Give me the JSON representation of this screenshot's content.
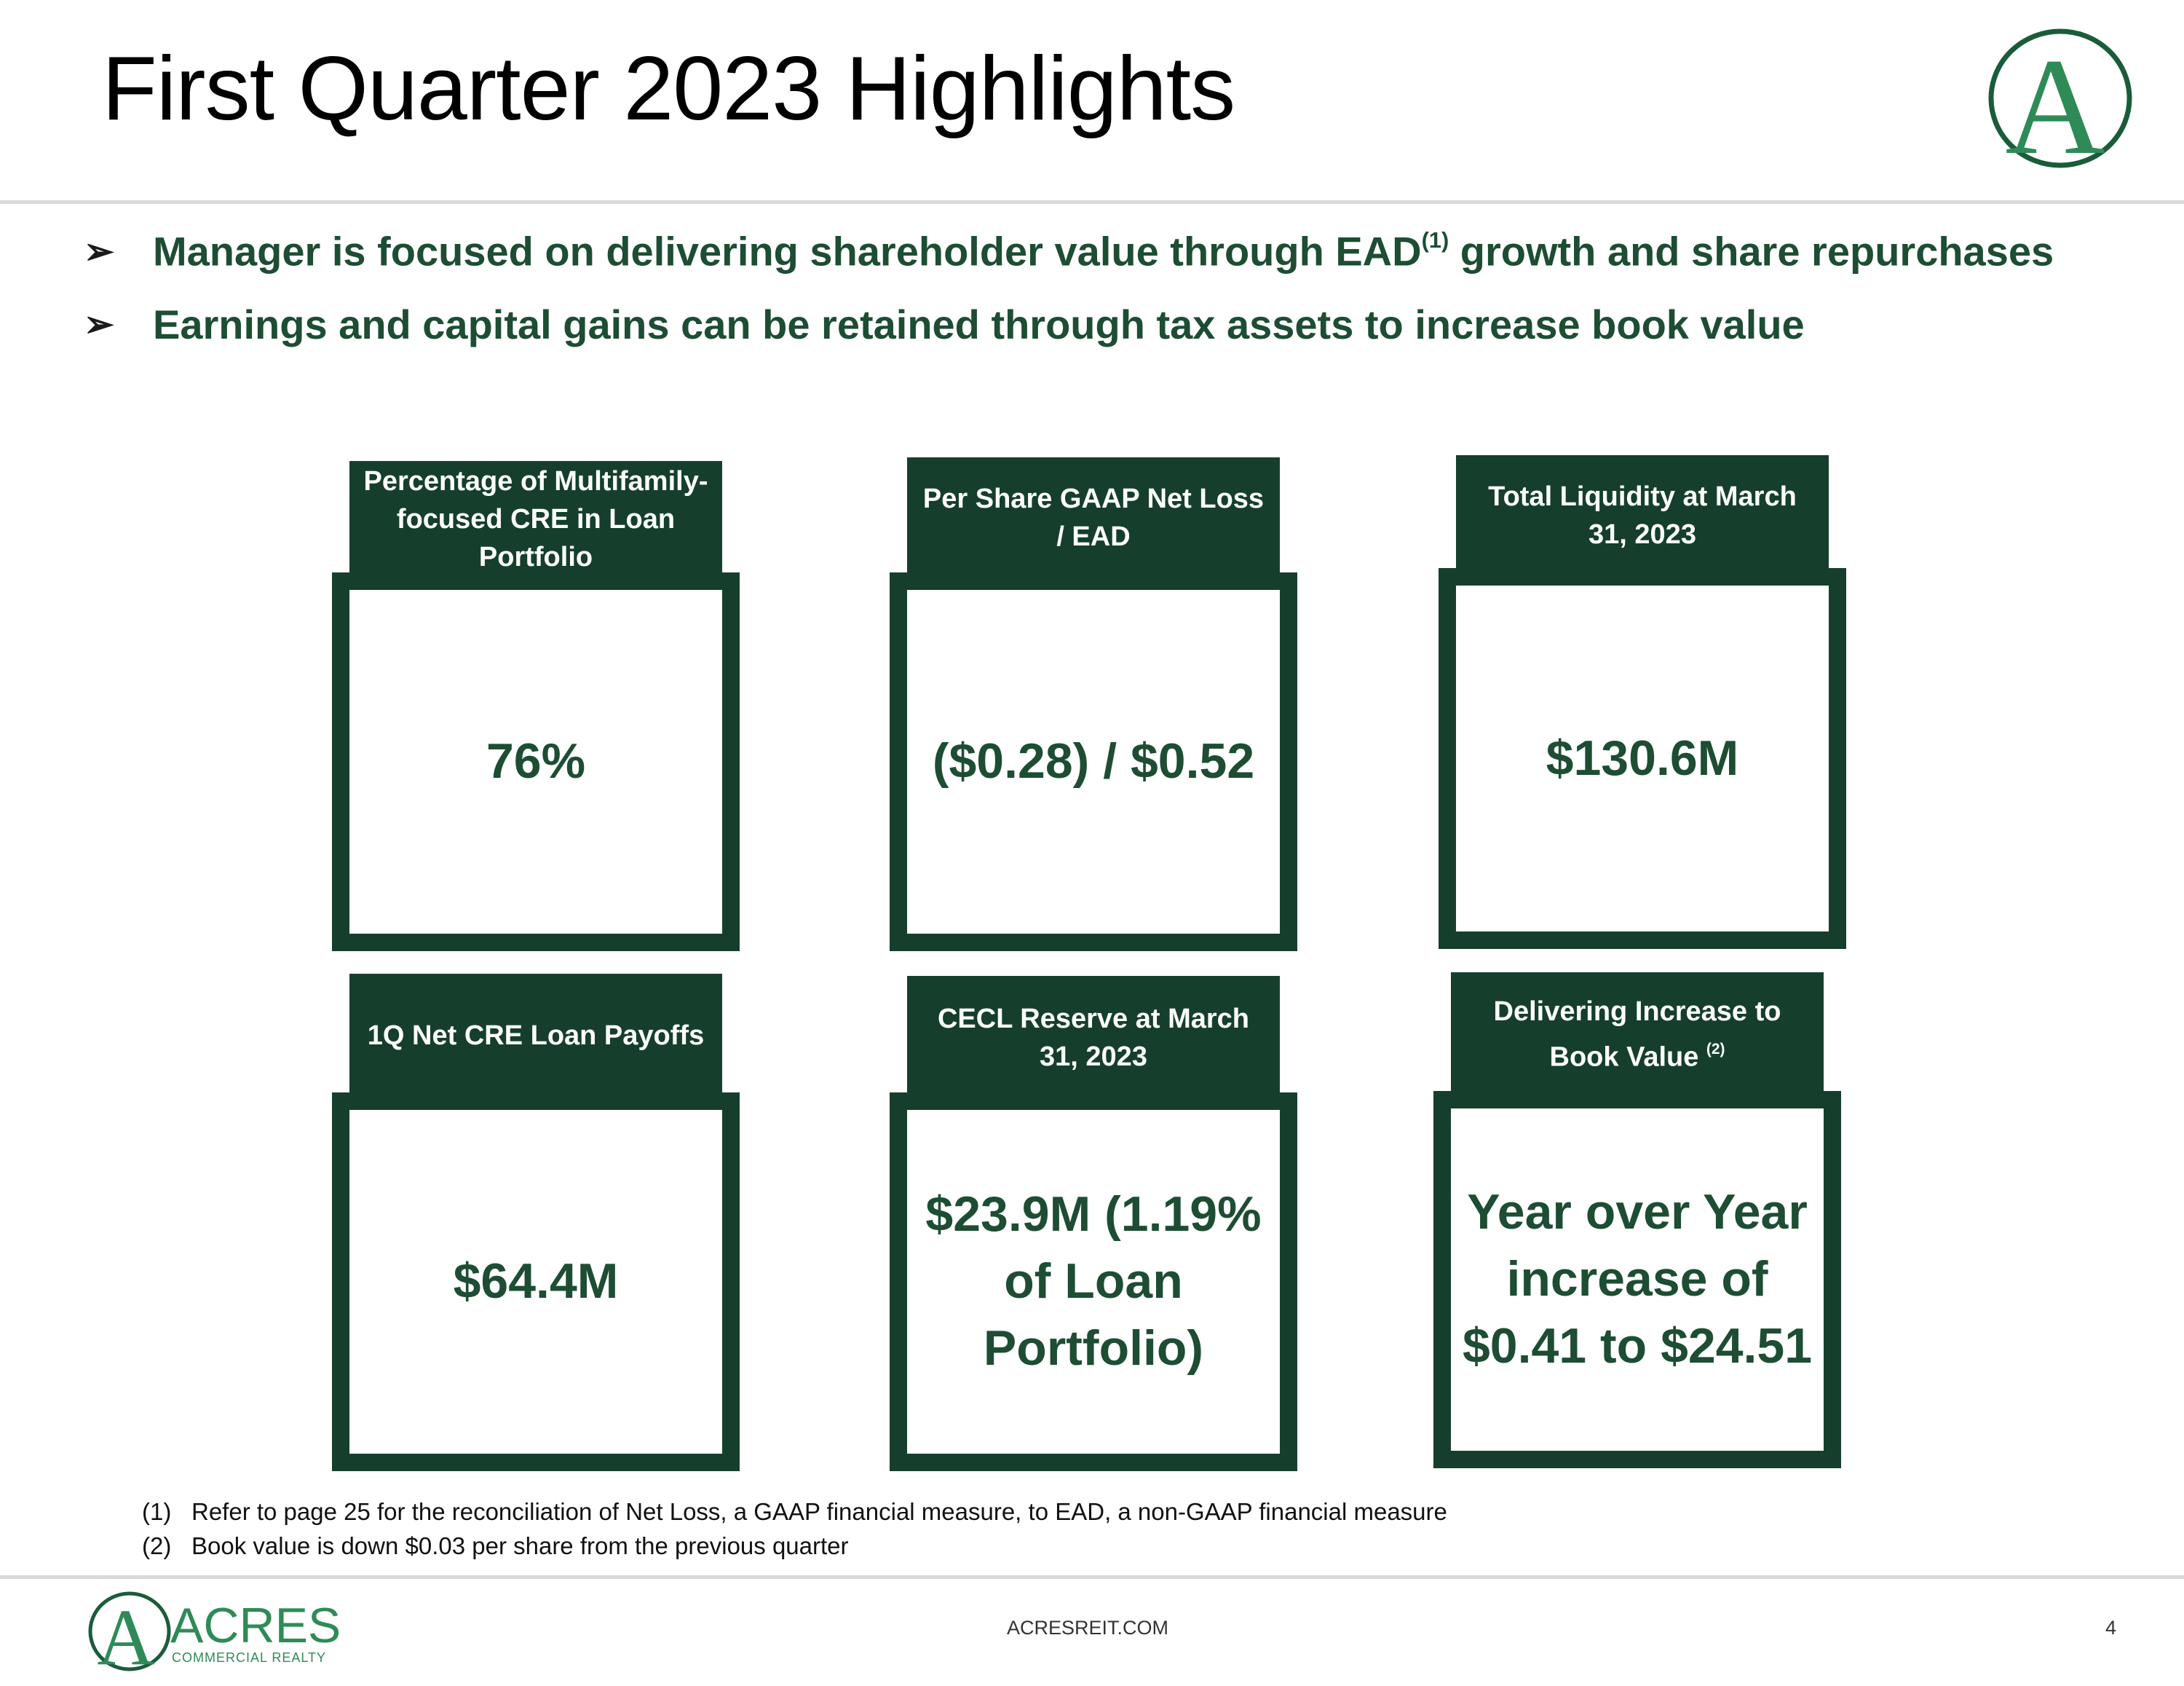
{
  "header": {
    "title": "First Quarter 2023 Highlights"
  },
  "bullets": [
    {
      "text_before": "Manager is focused on delivering shareholder value through EAD",
      "sup": "(1)",
      "text_after": " growth and share repurchases"
    },
    {
      "text_before": "Earnings and capital gains can be retained through tax assets to increase book value",
      "sup": "",
      "text_after": ""
    }
  ],
  "cards": [
    {
      "header": "Percentage of Multifamily-focused CRE in Loan Portfolio",
      "sup": "",
      "value": "76%"
    },
    {
      "header": "Per Share GAAP Net Loss / EAD",
      "sup": "",
      "value": "($0.28) / $0.52"
    },
    {
      "header": "Total Liquidity at March 31, 2023",
      "sup": "",
      "value": "$130.6M"
    },
    {
      "header": "1Q Net CRE Loan Payoffs",
      "sup": "",
      "value": "$64.4M"
    },
    {
      "header": "CECL Reserve at March 31, 2023",
      "sup": "",
      "value": "$23.9M (1.19% of Loan Portfolio)"
    },
    {
      "header": "Delivering Increase to Book Value",
      "sup": "(2)",
      "value": "Year over Year increase of $0.41 to $24.51"
    }
  ],
  "footnotes": [
    {
      "num": "(1)",
      "text": "Refer to page 25 for the reconciliation of Net Loss, a GAAP financial measure, to EAD, a non-GAAP financial measure"
    },
    {
      "num": "(2)",
      "text": "Book value is down $0.03 per share from the previous quarter"
    }
  ],
  "footer": {
    "site": "ACRESREIT.COM",
    "page": "4",
    "logo_letter": "A",
    "logo_name": "ACRES",
    "logo_tagline": "COMMERCIAL REALTY"
  },
  "colors": {
    "brand_dark_green": "#153f2c",
    "brand_text_green": "#1d4d33",
    "logo_green": "#2e8b57"
  }
}
